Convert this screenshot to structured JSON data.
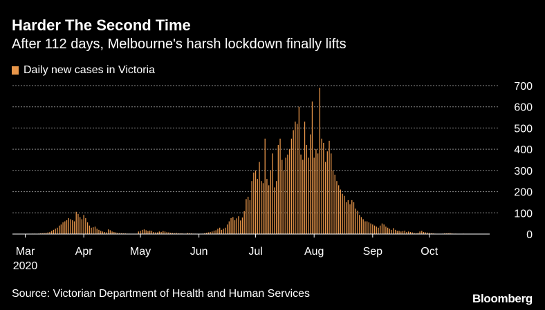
{
  "header": {
    "title": "Harder The Second Time",
    "subtitle": "After 112 days, Melbourne's harsh lockdown finally lifts"
  },
  "legend": {
    "label": "Daily new cases in Victoria",
    "color": "#e8964a"
  },
  "footer": {
    "source": "Source: Victorian Department of Health and Human Services",
    "brand": "Bloomberg"
  },
  "chart_data": {
    "type": "bar",
    "xlabel": "",
    "ylabel": "",
    "ylim": [
      0,
      700
    ],
    "grid": true,
    "legend_position": "top-left",
    "bar_color": "#e8964a",
    "background": "#000000",
    "y_ticks": [
      0,
      100,
      200,
      300,
      400,
      500,
      600,
      700
    ],
    "x_ticks": [
      {
        "label": "Mar",
        "day": 0,
        "sub": "2020"
      },
      {
        "label": "Apr",
        "day": 31,
        "sub": ""
      },
      {
        "label": "May",
        "day": 61,
        "sub": ""
      },
      {
        "label": "Jun",
        "day": 92,
        "sub": ""
      },
      {
        "label": "Jul",
        "day": 122,
        "sub": ""
      },
      {
        "label": "Aug",
        "day": 153,
        "sub": ""
      },
      {
        "label": "Sep",
        "day": 184,
        "sub": ""
      },
      {
        "label": "Oct",
        "day": 214,
        "sub": ""
      }
    ],
    "start_date": "2020-03-01",
    "series": [
      {
        "name": "Daily new cases in Victoria",
        "values": [
          1,
          1,
          1,
          1,
          2,
          2,
          1,
          2,
          3,
          4,
          5,
          6,
          8,
          10,
          15,
          20,
          25,
          30,
          40,
          45,
          55,
          60,
          65,
          75,
          70,
          65,
          60,
          105,
          95,
          80,
          70,
          90,
          75,
          55,
          40,
          30,
          32,
          35,
          25,
          20,
          15,
          12,
          10,
          8,
          22,
          18,
          12,
          10,
          8,
          6,
          5,
          4,
          3,
          3,
          2,
          2,
          1,
          1,
          1,
          1,
          12,
          15,
          20,
          22,
          18,
          14,
          16,
          15,
          10,
          8,
          8,
          12,
          10,
          14,
          12,
          9,
          8,
          6,
          5,
          4,
          6,
          4,
          3,
          3,
          2,
          2,
          5,
          4,
          3,
          2,
          2,
          1,
          1,
          1,
          2,
          4,
          6,
          8,
          10,
          12,
          16,
          18,
          25,
          30,
          20,
          25,
          30,
          45,
          60,
          75,
          80,
          65,
          74,
          84,
          64,
          78,
          108,
          165,
          176,
          160,
          250,
          290,
          300,
          260,
          340,
          250,
          240,
          450,
          260,
          230,
          300,
          380,
          220,
          250,
          420,
          450,
          350,
          300,
          360,
          375,
          400,
          450,
          490,
          530,
          520,
          600,
          375,
          350,
          530,
          420,
          360,
          470,
          625,
          360,
          400,
          380,
          690,
          450,
          430,
          340,
          390,
          440,
          380,
          300,
          280,
          250,
          230,
          210,
          190,
          180,
          150,
          160,
          140,
          160,
          150,
          120,
          110,
          90,
          80,
          70,
          60,
          60,
          55,
          50,
          45,
          40,
          35,
          30,
          40,
          50,
          45,
          35,
          30,
          25,
          20,
          28,
          20,
          15,
          15,
          12,
          14,
          16,
          10,
          12,
          10,
          8,
          5,
          4,
          6,
          12,
          15,
          10,
          8,
          7,
          6,
          4,
          3,
          2,
          1,
          1,
          1,
          2,
          3,
          3,
          4,
          5,
          3,
          2,
          2,
          1,
          1,
          1,
          2
        ]
      }
    ]
  }
}
